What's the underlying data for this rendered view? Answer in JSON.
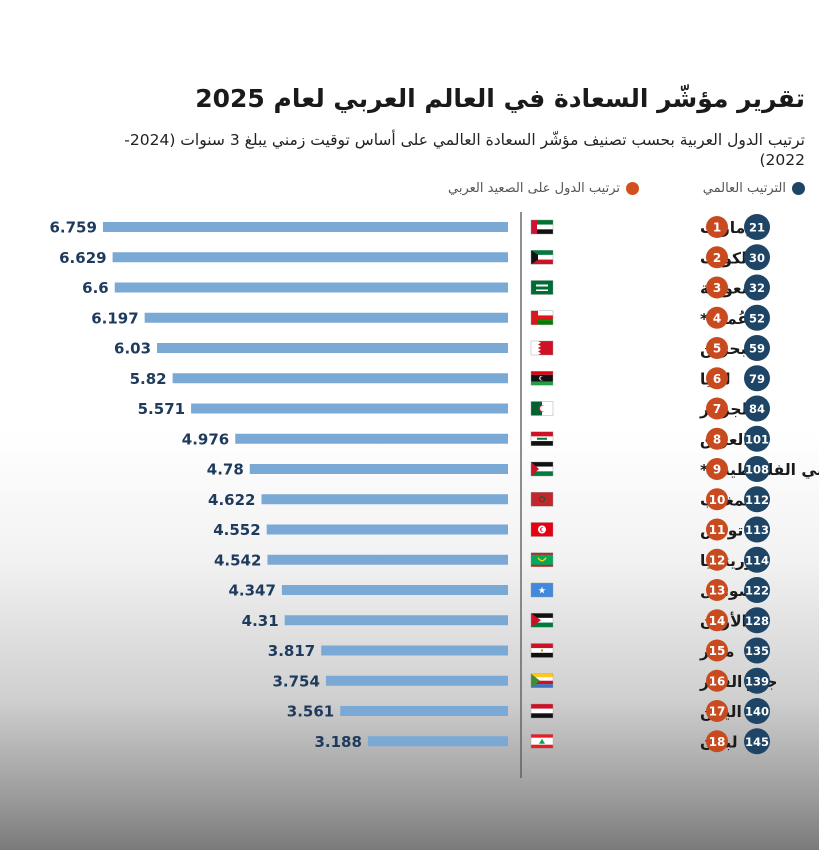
{
  "title": "تقرير مؤشّر السعادة في العالم العربي لعام 2025",
  "subtitle": "ترتيب الدول العربية بحسب تصنيف مؤشّر السعادة العالمي على أساس توقيت زمني يبلغ 3 سنوات (2024-2022)",
  "legend": {
    "world_rank": "الترتيب العالمي",
    "arab_rank": "ترتيب الدول على الصعيد العربي"
  },
  "colors": {
    "bar": "#7aa9d6",
    "world_badge": "#1e4466",
    "arab_badge": "#c84a1e",
    "value_text": "#1e3a5c"
  },
  "chart_data": {
    "type": "bar",
    "orientation": "horizontal",
    "title": "تقرير مؤشّر السعادة في العالم العربي لعام 2025",
    "rows": [
      {
        "country": "الإمارات",
        "arab_rank": 1,
        "world_rank": 21,
        "value": 6.759,
        "value_label": "6.759",
        "flag": "uae-flag"
      },
      {
        "country": "الكويت",
        "arab_rank": 2,
        "world_rank": 30,
        "value": 6.629,
        "value_label": "6.629",
        "flag": "kuwait-flag"
      },
      {
        "country": "السعودية",
        "arab_rank": 3,
        "world_rank": 32,
        "value": 6.6,
        "value_label": "6.6",
        "flag": "saudi-flag"
      },
      {
        "country": "عُمان*",
        "arab_rank": 4,
        "world_rank": 52,
        "value": 6.197,
        "value_label": "6.197",
        "flag": "oman-flag"
      },
      {
        "country": "البحرين",
        "arab_rank": 5,
        "world_rank": 59,
        "value": 6.03,
        "value_label": "6.03",
        "flag": "bahrain-flag"
      },
      {
        "country": "ليبيا",
        "arab_rank": 6,
        "world_rank": 79,
        "value": 5.82,
        "value_label": "5.82",
        "flag": "libya-flag"
      },
      {
        "country": "الجزائر",
        "arab_rank": 7,
        "world_rank": 84,
        "value": 5.571,
        "value_label": "5.571",
        "flag": "algeria-flag"
      },
      {
        "country": "العراق",
        "arab_rank": 8,
        "world_rank": 101,
        "value": 4.976,
        "value_label": "4.976",
        "flag": "iraq-flag"
      },
      {
        "country": "الأراضي الفلسطينية*",
        "arab_rank": 9,
        "world_rank": 108,
        "value": 4.78,
        "value_label": "4.78",
        "flag": "palestine-flag"
      },
      {
        "country": "المغرب",
        "arab_rank": 10,
        "world_rank": 112,
        "value": 4.622,
        "value_label": "4.622",
        "flag": "morocco-flag"
      },
      {
        "country": "تونس",
        "arab_rank": 11,
        "world_rank": 113,
        "value": 4.552,
        "value_label": "4.552",
        "flag": "tunisia-flag"
      },
      {
        "country": "موريتانيا",
        "arab_rank": 12,
        "world_rank": 114,
        "value": 4.542,
        "value_label": "4.542",
        "flag": "mauritania-flag"
      },
      {
        "country": "الصومال",
        "arab_rank": 13,
        "world_rank": 122,
        "value": 4.347,
        "value_label": "4.347",
        "flag": "somalia-flag"
      },
      {
        "country": "الأردن",
        "arab_rank": 14,
        "world_rank": 128,
        "value": 4.31,
        "value_label": "4.31",
        "flag": "jordan-flag"
      },
      {
        "country": "مصر",
        "arab_rank": 15,
        "world_rank": 135,
        "value": 3.817,
        "value_label": "3.817",
        "flag": "egypt-flag"
      },
      {
        "country": "جزر القمر",
        "arab_rank": 16,
        "world_rank": 139,
        "value": 3.754,
        "value_label": "3.754",
        "flag": "comoros-flag"
      },
      {
        "country": "اليمن",
        "arab_rank": 17,
        "world_rank": 140,
        "value": 3.561,
        "value_label": "3.561",
        "flag": "yemen-flag"
      },
      {
        "country": "لبنان",
        "arab_rank": 18,
        "world_rank": 145,
        "value": 3.188,
        "value_label": "3.188",
        "flag": "lebanon-flag"
      }
    ],
    "grid": false,
    "legend_position": "top-right"
  }
}
